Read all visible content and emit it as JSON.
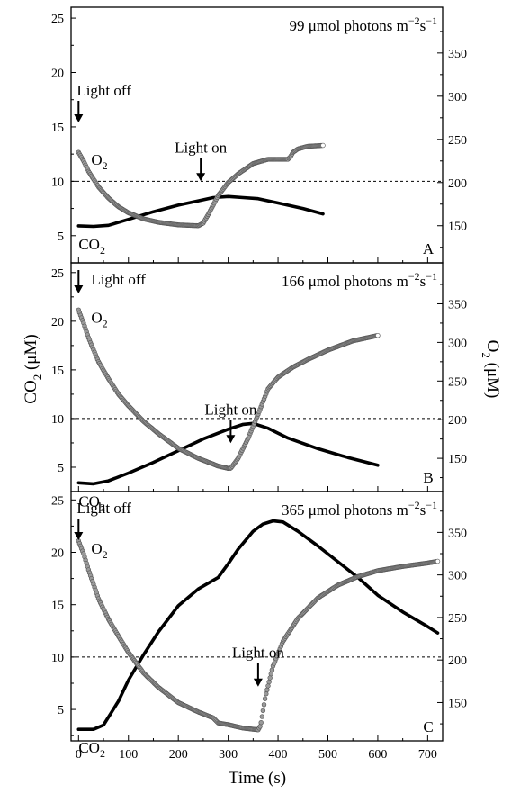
{
  "figure": {
    "xlabel": "Time (s)",
    "ylabel_left_main": "CO",
    "ylabel_left_sub": "2",
    "ylabel_left_unit": " (μM)",
    "ylabel_right_main": "O",
    "ylabel_right_sub": "2",
    "ylabel_right_unit": " (μM)",
    "arrow_down_glyph": "↓",
    "label_light_off": "Light off",
    "label_light_on": "Light on",
    "label_o2_main": "O",
    "label_o2_sub": "2",
    "label_co2_main": "CO",
    "label_co2_sub": "2",
    "colors": {
      "co2_line": "#000000",
      "o2_marker_fill": "#9a9a9a",
      "o2_marker_edge": "#555555",
      "dashed": "#000000"
    }
  },
  "chart_data": [
    {
      "type": "line",
      "panel_letter": "A",
      "intensity_main": "99 μmol photons m",
      "intensity_exp1": "−2",
      "intensity_mid": "s",
      "intensity_exp2": "−1",
      "xlim": [
        -15,
        730
      ],
      "ylim": [
        2.5,
        26
      ],
      "ylim_right": [
        107,
        403
      ],
      "xticks": [
        0,
        100,
        200,
        300,
        400,
        500,
        600,
        700
      ],
      "yticks_left": [
        5,
        10,
        15,
        20,
        25
      ],
      "yticks_right": [
        150,
        200,
        250,
        300,
        350
      ],
      "reference_line_co2": 10,
      "light_off_time": 0,
      "light_on_time": 245,
      "series": [
        {
          "name": "CO2",
          "axis": "left",
          "x": [
            0,
            30,
            60,
            100,
            150,
            200,
            240,
            270,
            300,
            330,
            360,
            400,
            450,
            490
          ],
          "values": [
            5.9,
            5.85,
            5.95,
            6.5,
            7.2,
            7.8,
            8.2,
            8.5,
            8.6,
            8.5,
            8.4,
            8.0,
            7.5,
            7.0
          ]
        },
        {
          "name": "O2",
          "axis": "right",
          "x": [
            0,
            10,
            20,
            40,
            60,
            80,
            100,
            130,
            160,
            200,
            240,
            250,
            260,
            280,
            300,
            320,
            350,
            380,
            420,
            425,
            430,
            440,
            460,
            490
          ],
          "values": [
            235,
            225,
            213,
            195,
            182,
            172,
            165,
            158,
            154,
            151,
            150,
            153,
            163,
            185,
            200,
            210,
            222,
            227,
            227,
            230,
            235,
            239,
            242,
            243
          ]
        }
      ]
    },
    {
      "type": "line",
      "panel_letter": "B",
      "intensity_main": "166 μmol photons m",
      "intensity_exp1": "−2",
      "intensity_mid": "s",
      "intensity_exp2": "−1",
      "xlim": [
        -15,
        730
      ],
      "ylim": [
        2.5,
        26
      ],
      "ylim_right": [
        107,
        403
      ],
      "xticks": [
        0,
        100,
        200,
        300,
        400,
        500,
        600,
        700
      ],
      "yticks_left": [
        5,
        10,
        15,
        20,
        25
      ],
      "yticks_right": [
        150,
        200,
        250,
        300,
        350
      ],
      "reference_line_co2": 10,
      "light_off_time": 0,
      "light_on_time": 305,
      "series": [
        {
          "name": "CO2",
          "axis": "left",
          "x": [
            0,
            30,
            60,
            100,
            150,
            200,
            250,
            300,
            330,
            350,
            380,
            420,
            480,
            540,
            600
          ],
          "values": [
            3.4,
            3.3,
            3.6,
            4.4,
            5.5,
            6.7,
            7.9,
            8.9,
            9.4,
            9.5,
            9.0,
            8.0,
            6.9,
            6.0,
            5.2
          ]
        },
        {
          "name": "O2",
          "axis": "right",
          "x": [
            0,
            10,
            20,
            40,
            60,
            80,
            100,
            130,
            160,
            200,
            240,
            280,
            300,
            305,
            320,
            340,
            360,
            380,
            400,
            430,
            460,
            500,
            550,
            600
          ],
          "values": [
            342,
            325,
            306,
            275,
            253,
            233,
            218,
            198,
            182,
            163,
            150,
            140,
            137,
            137,
            150,
            176,
            207,
            240,
            255,
            268,
            278,
            290,
            302,
            309
          ]
        }
      ]
    },
    {
      "type": "line",
      "panel_letter": "C",
      "intensity_main": "365 μmol photons m",
      "intensity_exp1": "−2",
      "intensity_mid": "s",
      "intensity_exp2": "−1",
      "xlim": [
        -15,
        730
      ],
      "ylim": [
        2.0,
        25.8
      ],
      "ylim_right": [
        105,
        398
      ],
      "xticks": [
        0,
        100,
        200,
        300,
        400,
        500,
        600,
        700
      ],
      "yticks_left": [
        5,
        10,
        15,
        20,
        25
      ],
      "yticks_right": [
        150,
        200,
        250,
        300,
        350
      ],
      "reference_line_co2": 10,
      "light_off_time": 0,
      "light_on_time": 360,
      "series": [
        {
          "name": "CO2",
          "axis": "left",
          "x": [
            0,
            30,
            50,
            80,
            100,
            130,
            160,
            200,
            240,
            280,
            300,
            320,
            350,
            370,
            390,
            410,
            440,
            480,
            520,
            560,
            600,
            650,
            700,
            720
          ],
          "values": [
            3.1,
            3.1,
            3.5,
            5.8,
            7.8,
            10.2,
            12.4,
            14.9,
            16.5,
            17.6,
            18.9,
            20.3,
            22.0,
            22.7,
            23.0,
            22.9,
            22.0,
            20.6,
            19.1,
            17.6,
            15.9,
            14.3,
            12.9,
            12.3
          ]
        },
        {
          "name": "O2",
          "axis": "right",
          "x": [
            0,
            10,
            20,
            40,
            60,
            80,
            100,
            130,
            160,
            200,
            240,
            270,
            280,
            300,
            330,
            360,
            365,
            375,
            390,
            410,
            440,
            480,
            520,
            560,
            600,
            650,
            700,
            720
          ],
          "values": [
            340,
            325,
            306,
            272,
            248,
            228,
            209,
            185,
            168,
            150,
            139,
            132,
            126,
            124,
            120,
            118,
            123,
            158,
            193,
            222,
            249,
            273,
            288,
            298,
            305,
            310,
            314,
            316
          ]
        }
      ]
    }
  ]
}
